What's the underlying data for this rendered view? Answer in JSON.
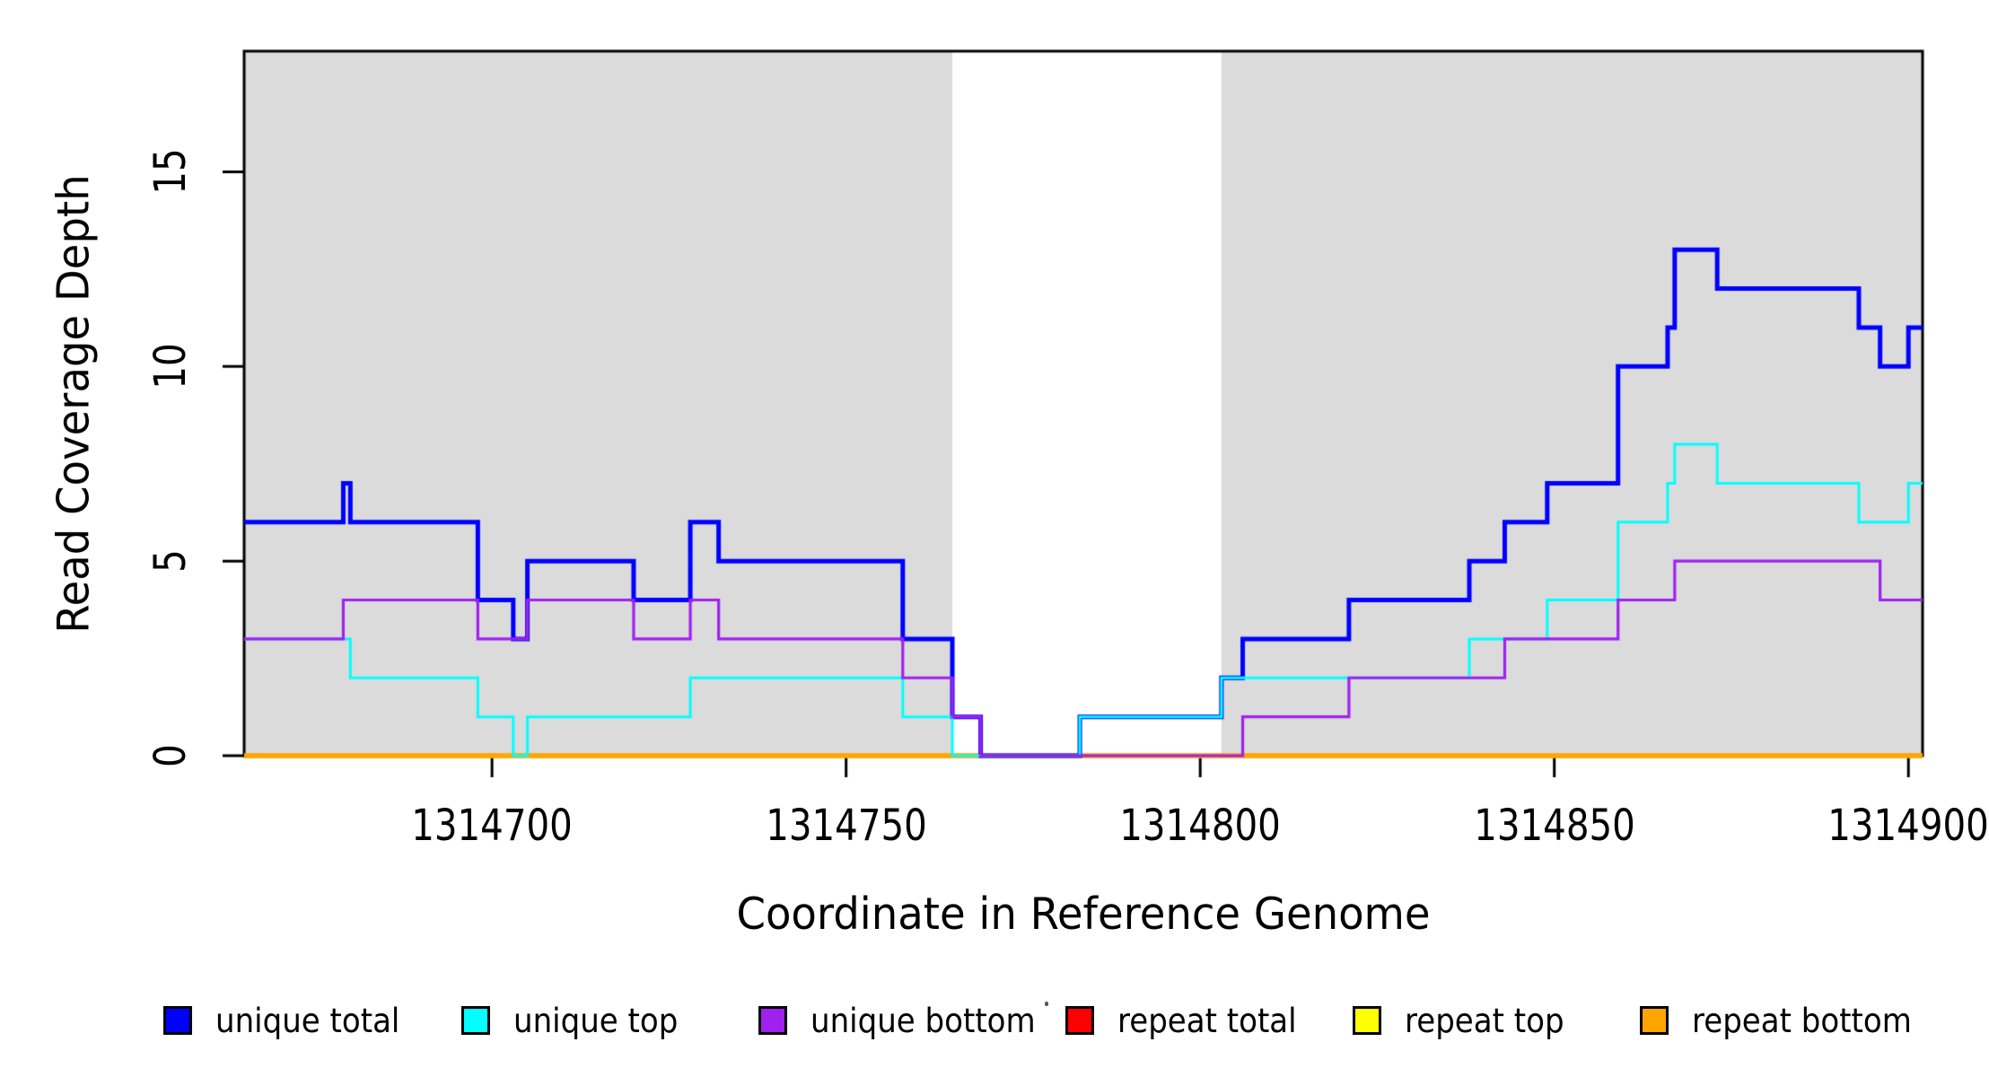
{
  "chart_data": {
    "type": "line",
    "subtype": "step-coverage",
    "title": "",
    "xlabel": "Coordinate in Reference Genome",
    "ylabel": "Read Coverage Depth",
    "xlim": [
      1314665,
      1314902
    ],
    "ylim": [
      0,
      18.1
    ],
    "x_ticks": [
      1314700,
      1314750,
      1314800,
      1314850,
      1314900
    ],
    "y_ticks": [
      0,
      5,
      10,
      15
    ],
    "grid": false,
    "background_shading": {
      "color": "#DBDBDB",
      "regions": [
        [
          1314665,
          1314765
        ],
        [
          1314803,
          1314902
        ]
      ]
    },
    "series": [
      {
        "name": "repeat total",
        "color": "#FF0000",
        "lwd": 5,
        "segments": [
          [
            1314665,
            1314902,
            0
          ]
        ]
      },
      {
        "name": "repeat top",
        "color": "#FFFF00",
        "lwd": 5,
        "segments": [
          [
            1314665,
            1314902,
            0
          ]
        ]
      },
      {
        "name": "repeat bottom",
        "color": "#FFA500",
        "lwd": 5,
        "segments": [
          [
            1314665,
            1314902,
            0
          ]
        ]
      },
      {
        "name": "unique total",
        "color": "#0000FF",
        "lwd": 5,
        "segments": [
          [
            1314665,
            1314679,
            6
          ],
          [
            1314679,
            1314680,
            7
          ],
          [
            1314680,
            1314698,
            6
          ],
          [
            1314698,
            1314703,
            4
          ],
          [
            1314703,
            1314705,
            3
          ],
          [
            1314705,
            1314720,
            5
          ],
          [
            1314720,
            1314728,
            4
          ],
          [
            1314728,
            1314732,
            6
          ],
          [
            1314732,
            1314758,
            5
          ],
          [
            1314758,
            1314765,
            3
          ],
          [
            1314765,
            1314769,
            1
          ],
          [
            1314769,
            1314783,
            0
          ],
          [
            1314783,
            1314803,
            1
          ],
          [
            1314803,
            1314806,
            2
          ],
          [
            1314806,
            1314821,
            3
          ],
          [
            1314821,
            1314838,
            4
          ],
          [
            1314838,
            1314843,
            5
          ],
          [
            1314843,
            1314849,
            6
          ],
          [
            1314849,
            1314859,
            7
          ],
          [
            1314859,
            1314866,
            10
          ],
          [
            1314866,
            1314867,
            11
          ],
          [
            1314867,
            1314873,
            13
          ],
          [
            1314873,
            1314893,
            12
          ],
          [
            1314893,
            1314896,
            11
          ],
          [
            1314896,
            1314900,
            10
          ],
          [
            1314900,
            1314902,
            11
          ]
        ]
      },
      {
        "name": "unique top",
        "color": "#00FFFF",
        "lwd": 3,
        "segments": [
          [
            1314665,
            1314680,
            3
          ],
          [
            1314680,
            1314698,
            2
          ],
          [
            1314698,
            1314703,
            1
          ],
          [
            1314703,
            1314705,
            0
          ],
          [
            1314705,
            1314728,
            1
          ],
          [
            1314728,
            1314758,
            2
          ],
          [
            1314758,
            1314765,
            1
          ],
          [
            1314765,
            1314783,
            0
          ],
          [
            1314783,
            1314803,
            1
          ],
          [
            1314803,
            1314838,
            2
          ],
          [
            1314838,
            1314849,
            3
          ],
          [
            1314849,
            1314859,
            4
          ],
          [
            1314859,
            1314866,
            6
          ],
          [
            1314866,
            1314867,
            7
          ],
          [
            1314867,
            1314873,
            8
          ],
          [
            1314873,
            1314893,
            7
          ],
          [
            1314893,
            1314900,
            6
          ],
          [
            1314900,
            1314902,
            7
          ]
        ]
      },
      {
        "name": "unique bottom",
        "color": "#A020F0",
        "lwd": 3.2,
        "segments": [
          [
            1314665,
            1314679,
            3
          ],
          [
            1314679,
            1314698,
            4
          ],
          [
            1314698,
            1314705,
            3
          ],
          [
            1314705,
            1314720,
            4
          ],
          [
            1314720,
            1314728,
            3
          ],
          [
            1314728,
            1314732,
            4
          ],
          [
            1314732,
            1314758,
            3
          ],
          [
            1314758,
            1314765,
            2
          ],
          [
            1314765,
            1314769,
            1
          ],
          [
            1314769,
            1314806,
            0
          ],
          [
            1314806,
            1314821,
            1
          ],
          [
            1314821,
            1314843,
            2
          ],
          [
            1314843,
            1314859,
            3
          ],
          [
            1314859,
            1314867,
            4
          ],
          [
            1314867,
            1314896,
            5
          ],
          [
            1314896,
            1314902,
            4
          ]
        ]
      }
    ],
    "legend": {
      "position": "bottom",
      "entries": [
        {
          "label": "unique total",
          "color": "#0000FF"
        },
        {
          "label": "unique top",
          "color": "#00FFFF"
        },
        {
          "label": "unique bottom",
          "color": "#A020F0"
        },
        {
          "label": "repeat total",
          "color": "#FF0000"
        },
        {
          "label": "repeat top",
          "color": "#FFFF00"
        },
        {
          "label": "repeat bottom",
          "color": "#FFA500"
        }
      ]
    }
  }
}
